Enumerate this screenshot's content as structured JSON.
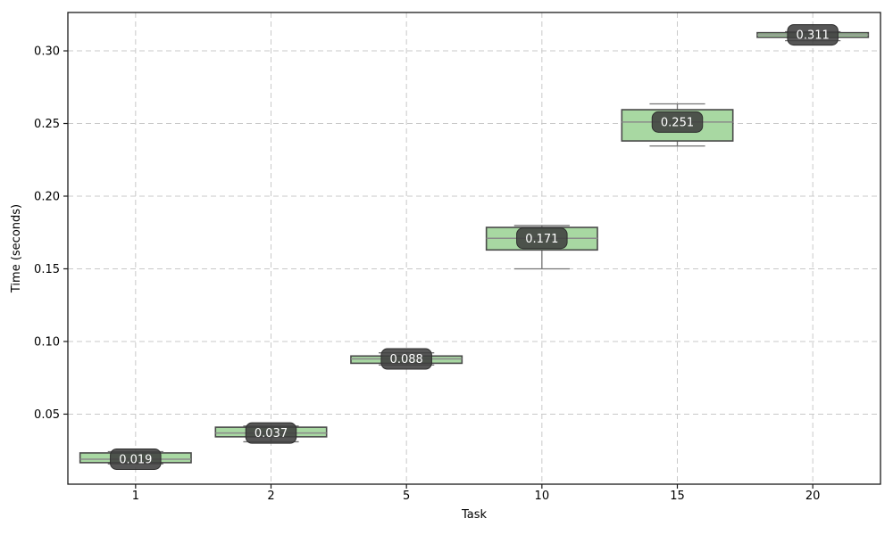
{
  "chart_data": {
    "type": "box",
    "title": "",
    "xlabel": "Task",
    "ylabel": "Time (seconds)",
    "categories": [
      "1",
      "2",
      "5",
      "10",
      "15",
      "20"
    ],
    "boxes": [
      {
        "category": "1",
        "label": "0.019",
        "median": 0.019,
        "q1": 0.0166,
        "q3": 0.0233,
        "whisker_low": 0.0158,
        "whisker_high": 0.0242
      },
      {
        "category": "2",
        "label": "0.037",
        "median": 0.037,
        "q1": 0.0344,
        "q3": 0.041,
        "whisker_low": 0.031,
        "whisker_high": 0.0418
      },
      {
        "category": "5",
        "label": "0.088",
        "median": 0.088,
        "q1": 0.085,
        "q3": 0.09,
        "whisker_low": 0.0838,
        "whisker_high": 0.0922
      },
      {
        "category": "10",
        "label": "0.171",
        "median": 0.171,
        "q1": 0.163,
        "q3": 0.1785,
        "whisker_low": 0.15,
        "whisker_high": 0.1798
      },
      {
        "category": "15",
        "label": "0.251",
        "median": 0.251,
        "q1": 0.238,
        "q3": 0.2595,
        "whisker_low": 0.2345,
        "whisker_high": 0.2635
      },
      {
        "category": "20",
        "label": "0.311",
        "median": 0.311,
        "q1": 0.3093,
        "q3": 0.3125,
        "whisker_low": 0.307,
        "whisker_high": 0.3132
      }
    ],
    "yticks": [
      {
        "value": 0.05,
        "label": "0.05"
      },
      {
        "value": 0.1,
        "label": "0.10"
      },
      {
        "value": 0.15,
        "label": "0.15"
      },
      {
        "value": 0.2,
        "label": "0.20"
      },
      {
        "value": 0.25,
        "label": "0.25"
      },
      {
        "value": 0.3,
        "label": "0.30"
      }
    ],
    "ylim": [
      0.0018,
      0.3264
    ],
    "grid": true,
    "legend_position": "none",
    "colors": {
      "box_fill": "#a8d8a2",
      "box_edge": "#4a4a4a",
      "median": "#8a8a8a",
      "whisker": "#737373",
      "label_bg": "#3f3f3f",
      "label_text": "#ffffff",
      "grid": "#c9c9c9",
      "spine": "#1a1a1a",
      "tick_text": "#000000",
      "background": "#ffffff"
    }
  }
}
